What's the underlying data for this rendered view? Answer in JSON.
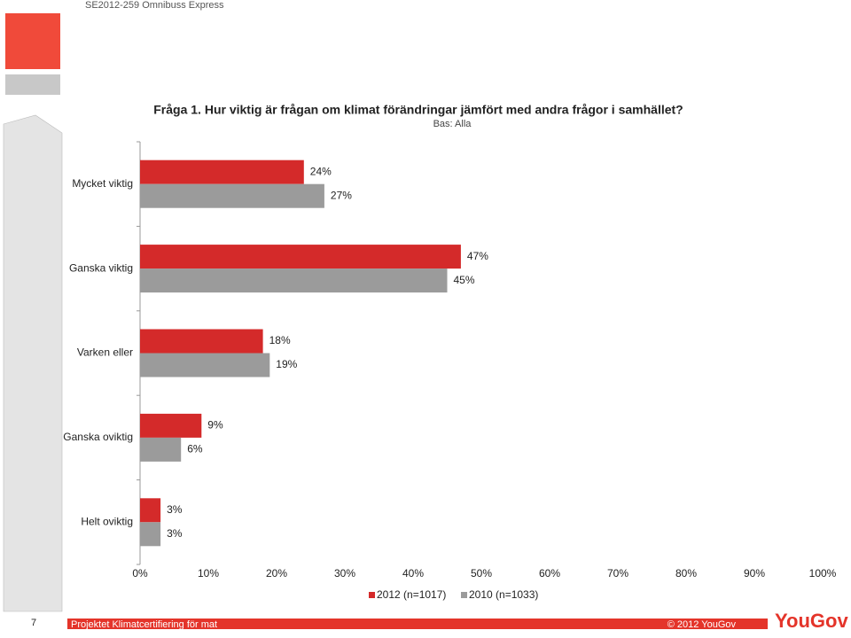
{
  "header": {
    "project_code": "SE2012-259 Omnibuss Express"
  },
  "chart_data": {
    "type": "hbar",
    "title": "Fråga 1. Hur viktig är frågan om klimat förändringar jämfört med andra frågor i samhället?",
    "subtitle": "Bas: Alla",
    "categories": [
      "Mycket viktig",
      "Ganska viktig",
      "Varken eller",
      "Ganska oviktig",
      "Helt oviktig"
    ],
    "series": [
      {
        "name": "2012 (n=1017)",
        "color": "#d42a2a",
        "values": [
          24,
          47,
          18,
          9,
          3
        ],
        "value_labels": [
          "24%",
          "47%",
          "18%",
          "9%",
          "3%"
        ]
      },
      {
        "name": "2010 (n=1033)",
        "color": "#9b9b9b",
        "values": [
          27,
          45,
          19,
          6,
          3
        ],
        "value_labels": [
          "27%",
          "45%",
          "19%",
          "6%",
          "3%"
        ]
      }
    ],
    "xlim": [
      0,
      100
    ],
    "xticks": [
      {
        "value": 0,
        "label": "0%"
      },
      {
        "value": 10,
        "label": "10%"
      },
      {
        "value": 20,
        "label": "20%"
      },
      {
        "value": 30,
        "label": "30%"
      },
      {
        "value": 40,
        "label": "40%"
      },
      {
        "value": 50,
        "label": "50%"
      },
      {
        "value": 60,
        "label": "60%"
      },
      {
        "value": 70,
        "label": "70%"
      },
      {
        "value": 80,
        "label": "80%"
      },
      {
        "value": 90,
        "label": "90%"
      },
      {
        "value": 100,
        "label": "100%"
      }
    ],
    "grid": false,
    "legend": "bottom"
  },
  "footer": {
    "page": "7",
    "project": "Projektet Klimatcertifiering för mat",
    "copyright": "© 2012 YouGov",
    "logo": "YouGov"
  }
}
